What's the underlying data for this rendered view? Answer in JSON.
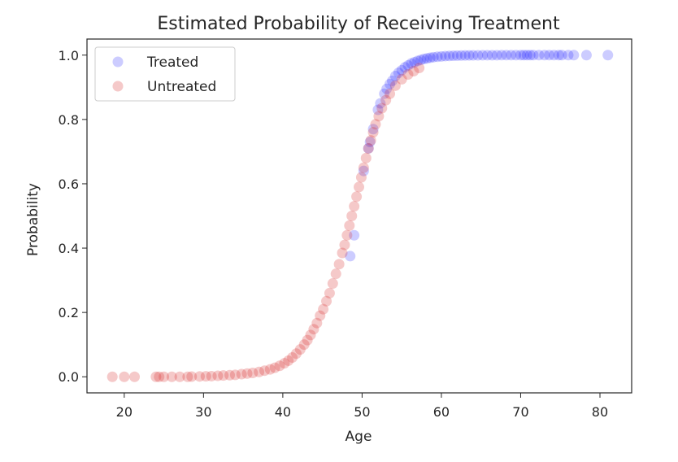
{
  "chart_data": {
    "type": "scatter",
    "title": "Estimated Probability of Receiving Treatment",
    "xlabel": "Age",
    "ylabel": "Probability",
    "xlim": [
      15.3,
      84.0
    ],
    "ylim": [
      -0.05,
      1.05
    ],
    "xticks": [
      20,
      30,
      40,
      50,
      60,
      70,
      80
    ],
    "yticks": [
      0.0,
      0.2,
      0.4,
      0.6,
      0.8,
      1.0
    ],
    "xtick_labels": [
      "20",
      "30",
      "40",
      "50",
      "60",
      "70",
      "80"
    ],
    "ytick_labels": [
      "0.0",
      "0.2",
      "0.4",
      "0.6",
      "0.8",
      "1.0"
    ],
    "grid": false,
    "legend_position": "top-left",
    "series": [
      {
        "name": "Treated",
        "color": "#0000ff",
        "alpha": 0.2,
        "x": [
          48.5,
          49.0,
          50.2,
          50.8,
          51.0,
          51.4,
          52.0,
          52.3,
          52.8,
          53.1,
          53.5,
          53.8,
          54.2,
          54.6,
          55.0,
          55.4,
          55.8,
          56.2,
          56.6,
          57.0,
          57.4,
          57.8,
          58.2,
          58.6,
          59.0,
          59.5,
          60.0,
          60.5,
          61.0,
          61.5,
          62.0,
          62.5,
          63.0,
          63.5,
          64.0,
          64.6,
          65.2,
          65.8,
          66.4,
          67.0,
          67.6,
          68.2,
          68.8,
          69.4,
          70.0,
          70.4,
          70.8,
          71.2,
          71.6,
          72.3,
          73.0,
          73.6,
          74.2,
          74.8,
          75.2,
          76.0,
          76.7,
          78.3,
          81.0
        ],
        "y": [
          0.375,
          0.44,
          0.64,
          0.71,
          0.73,
          0.77,
          0.83,
          0.85,
          0.88,
          0.895,
          0.91,
          0.92,
          0.935,
          0.945,
          0.953,
          0.962,
          0.968,
          0.974,
          0.978,
          0.982,
          0.985,
          0.988,
          0.99,
          0.992,
          0.9935,
          0.995,
          0.996,
          0.997,
          0.9975,
          0.998,
          0.9985,
          0.9988,
          0.999,
          0.9992,
          0.9994,
          0.9995,
          0.9996,
          0.9997,
          0.9998,
          0.9998,
          0.9999,
          0.9999,
          0.9999,
          1.0,
          1.0,
          1.0,
          1.0,
          1.0,
          1.0,
          1.0,
          1.0,
          1.0,
          1.0,
          1.0,
          1.0,
          1.0,
          1.0,
          1.0,
          1.0
        ]
      },
      {
        "name": "Untreated",
        "color": "#d62728",
        "alpha": 0.25,
        "x": [
          18.5,
          20.0,
          21.3,
          24.0,
          24.4,
          25.0,
          26.0,
          27.0,
          28.0,
          28.5,
          29.5,
          30.3,
          31.0,
          31.8,
          32.5,
          33.3,
          34.0,
          34.8,
          35.5,
          36.2,
          37.0,
          37.7,
          38.4,
          39.0,
          39.6,
          40.2,
          40.7,
          41.2,
          41.7,
          42.2,
          42.7,
          43.1,
          43.5,
          43.9,
          44.3,
          44.7,
          45.1,
          45.5,
          45.9,
          46.3,
          46.7,
          47.1,
          47.5,
          47.8,
          48.1,
          48.4,
          48.7,
          49.0,
          49.3,
          49.6,
          49.9,
          50.2,
          50.5,
          50.8,
          51.1,
          51.4,
          51.7,
          52.1,
          52.5,
          53.0,
          53.5,
          54.2,
          55.0,
          55.8,
          56.5,
          57.2
        ],
        "y": [
          0.0,
          0.0,
          0.0,
          0.0,
          0.0,
          0.0,
          0.0,
          0.0,
          0.0,
          0.0005,
          0.001,
          0.0015,
          0.002,
          0.003,
          0.004,
          0.005,
          0.006,
          0.008,
          0.01,
          0.012,
          0.015,
          0.019,
          0.023,
          0.028,
          0.034,
          0.042,
          0.05,
          0.06,
          0.072,
          0.085,
          0.1,
          0.114,
          0.13,
          0.148,
          0.167,
          0.19,
          0.21,
          0.235,
          0.26,
          0.29,
          0.32,
          0.35,
          0.385,
          0.41,
          0.44,
          0.47,
          0.5,
          0.53,
          0.56,
          0.59,
          0.62,
          0.65,
          0.68,
          0.71,
          0.735,
          0.76,
          0.785,
          0.81,
          0.835,
          0.86,
          0.88,
          0.905,
          0.925,
          0.94,
          0.95,
          0.96
        ]
      }
    ]
  }
}
